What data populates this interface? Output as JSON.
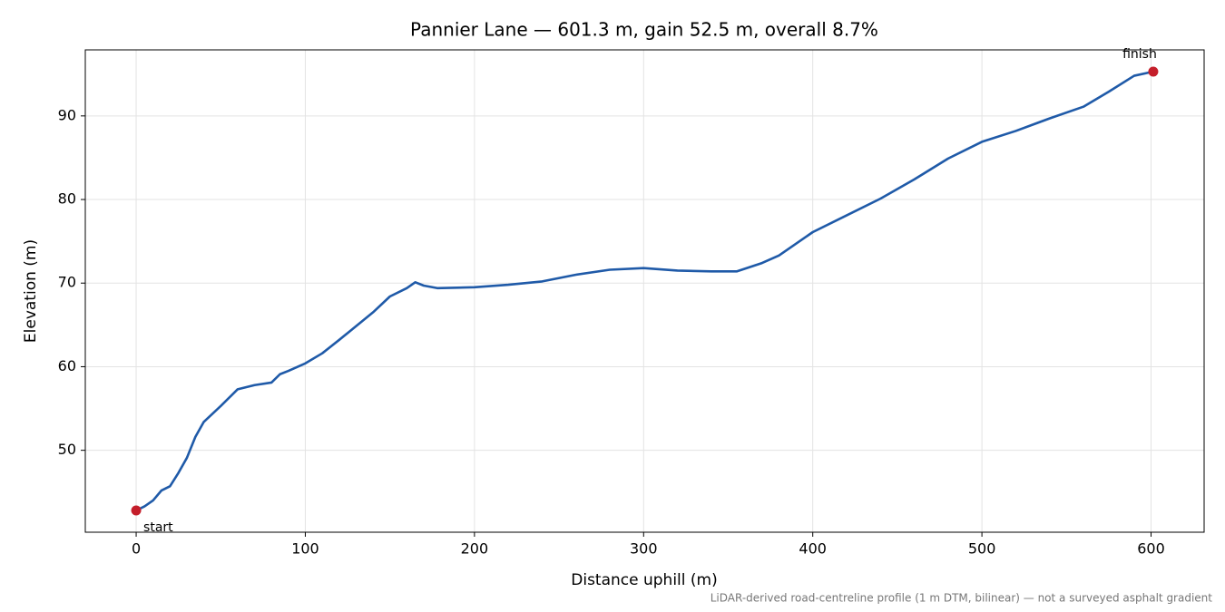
{
  "chart_data": {
    "type": "line",
    "title": "Pannier Lane — 601.3 m, gain 52.5 m, overall 8.7%",
    "x_label": "Distance uphill (m)",
    "y_label": "Elevation (m)",
    "note": "LiDAR-derived road-centreline profile (1 m DTM, bilinear) — not a surveyed asphalt gradient",
    "x": [
      0,
      5,
      10,
      15,
      20,
      25,
      30,
      35,
      40,
      50,
      60,
      70,
      80,
      85,
      90,
      100,
      110,
      120,
      140,
      150,
      160,
      165,
      170,
      178,
      200,
      220,
      240,
      260,
      280,
      300,
      320,
      340,
      355,
      370,
      380,
      400,
      420,
      440,
      460,
      480,
      500,
      520,
      540,
      560,
      575,
      590,
      601.3
    ],
    "series": [
      {
        "name": "Elevation",
        "color": "#1f5aa8",
        "values": [
          42.8,
          43.3,
          44.0,
          45.2,
          45.7,
          47.3,
          49.1,
          51.6,
          53.4,
          55.3,
          57.3,
          57.8,
          58.1,
          59.1,
          59.5,
          60.4,
          61.6,
          63.2,
          66.5,
          68.4,
          69.4,
          70.1,
          69.7,
          69.4,
          69.5,
          69.8,
          70.2,
          71.0,
          71.6,
          71.8,
          71.5,
          71.4,
          71.4,
          72.4,
          73.3,
          76.1,
          78.1,
          80.1,
          82.4,
          84.9,
          86.9,
          88.2,
          89.7,
          91.1,
          92.9,
          94.8,
          95.3
        ]
      }
    ],
    "endpoints": {
      "color": "#c41e2a",
      "x": [
        0,
        601.3
      ],
      "values": [
        42.8,
        95.3
      ],
      "labels": [
        "start",
        "finish"
      ]
    },
    "xlim": [
      -30.07,
      631.37
    ],
    "ylim": [
      40.2,
      97.9
    ],
    "xticks": [
      0,
      100,
      200,
      300,
      400,
      500,
      600
    ],
    "yticks": [
      50,
      60,
      70,
      80,
      90
    ],
    "grid": true
  }
}
